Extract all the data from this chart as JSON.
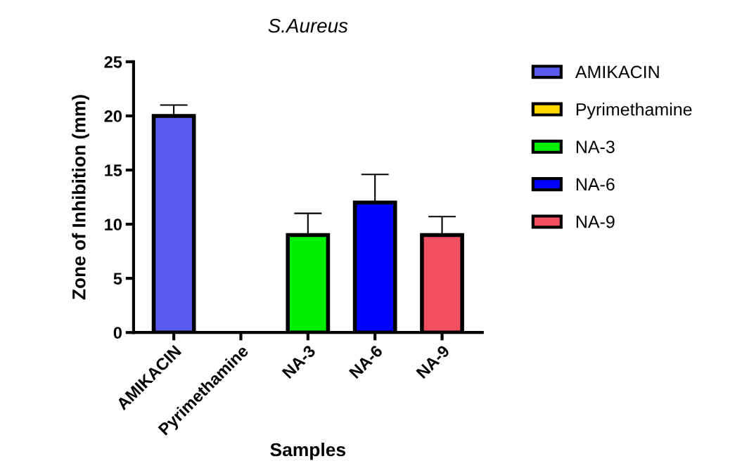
{
  "chart_data": {
    "type": "bar",
    "title": "S.Aureus",
    "xlabel": "Samples",
    "ylabel": "Zone of Inhibition (mm)",
    "categories": [
      "AMIKACIN",
      "Pyrimethamine",
      "NA-3",
      "NA-6",
      "NA-9"
    ],
    "series": [
      {
        "name": "AMIKACIN",
        "color": "#5a5af0",
        "values": [
          20,
          null,
          null,
          null,
          null
        ],
        "errors": [
          [
            20,
            21
          ],
          null,
          null,
          null,
          null
        ]
      },
      {
        "name": "Pyrimethamine",
        "color": "#ffd800",
        "values": [
          null,
          0,
          null,
          null,
          null
        ],
        "errors": [
          null,
          null,
          null,
          null,
          null
        ]
      },
      {
        "name": "NA-3",
        "color": "#00ee00",
        "values": [
          null,
          null,
          9,
          null,
          null
        ],
        "errors": [
          null,
          null,
          [
            9,
            11
          ],
          null,
          null
        ]
      },
      {
        "name": "NA-6",
        "color": "#0000ff",
        "values": [
          null,
          null,
          null,
          12,
          null
        ],
        "errors": [
          null,
          null,
          null,
          [
            12,
            14.6
          ],
          null
        ]
      },
      {
        "name": "NA-9",
        "color": "#f05060",
        "values": [
          null,
          null,
          null,
          null,
          9
        ],
        "errors": [
          null,
          null,
          null,
          null,
          [
            9,
            10.7
          ]
        ]
      }
    ],
    "ylim": [
      0,
      25
    ],
    "yticks": [
      0,
      5,
      10,
      15,
      20,
      25
    ],
    "grid": false,
    "legend": "right"
  }
}
